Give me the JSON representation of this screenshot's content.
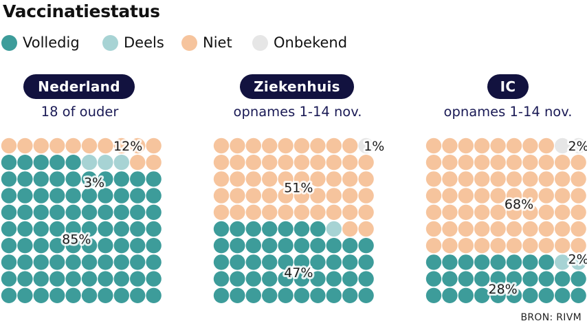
{
  "title": "Vaccinatiestatus",
  "legend": [
    {
      "label": "Volledig",
      "color": "#3d9c9a"
    },
    {
      "label": "Deels",
      "color": "#a7d3d4"
    },
    {
      "label": "Niet",
      "color": "#f6c49d"
    },
    {
      "label": "Onbekend",
      "color": "#e6e6e6"
    }
  ],
  "source": "BRON: RIVM",
  "chart_data": [
    {
      "type": "waffle",
      "title": "Nederland",
      "subtitle": "18 of ouder",
      "units_total": 100,
      "order_from_bottom": [
        "Volledig",
        "Deels",
        "Niet",
        "Onbekend"
      ],
      "series": [
        {
          "name": "Volledig",
          "value": 85,
          "label": "85%"
        },
        {
          "name": "Deels",
          "value": 3,
          "label": "3%"
        },
        {
          "name": "Niet",
          "value": 12,
          "label": "12%"
        },
        {
          "name": "Onbekend",
          "value": 0,
          "label": ""
        }
      ]
    },
    {
      "type": "waffle",
      "title": "Ziekenhuis",
      "subtitle": "opnames 1-14 nov.",
      "units_total": 100,
      "order_from_bottom": [
        "Volledig",
        "Deels",
        "Niet",
        "Onbekend"
      ],
      "series": [
        {
          "name": "Volledig",
          "value": 47,
          "label": "47%"
        },
        {
          "name": "Deels",
          "value": 1,
          "label": ""
        },
        {
          "name": "Niet",
          "value": 51,
          "label": "51%"
        },
        {
          "name": "Onbekend",
          "value": 1,
          "label": "1%"
        }
      ]
    },
    {
      "type": "waffle",
      "title": "IC",
      "subtitle": "opnames 1-14 nov.",
      "units_total": 100,
      "order_from_bottom": [
        "Volledig",
        "Deels",
        "Niet",
        "Onbekend"
      ],
      "series": [
        {
          "name": "Volledig",
          "value": 28,
          "label": "28%"
        },
        {
          "name": "Deels",
          "value": 2,
          "label": "2%"
        },
        {
          "name": "Niet",
          "value": 68,
          "label": "68%"
        },
        {
          "name": "Onbekend",
          "value": 2,
          "label": "2%"
        }
      ]
    }
  ]
}
